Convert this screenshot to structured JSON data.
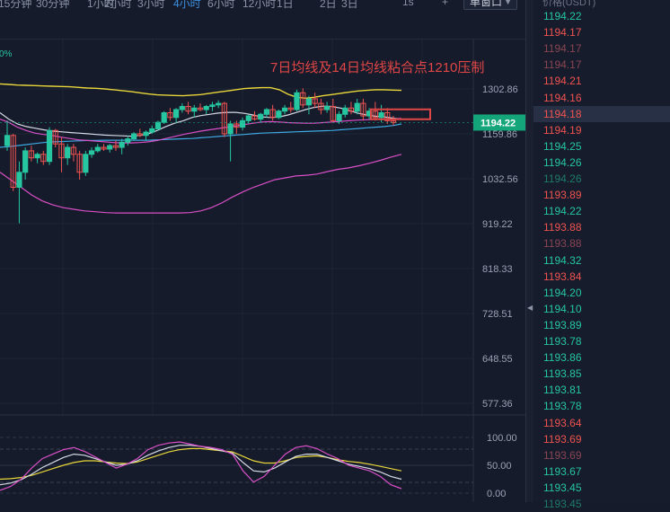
{
  "toolbar": {
    "timeframes": [
      "15分钟",
      "30分钟",
      "1小时",
      "2小时",
      "3小时",
      "4小时",
      "6小时",
      "12小时",
      "1日",
      "2日",
      "3日"
    ],
    "active_timeframe": "4小时",
    "extra_buttons": [
      "1s",
      "+"
    ],
    "chart_mode": "单窗口"
  },
  "colors": {
    "up": "#26c6a0",
    "down": "#ef5350",
    "background": "#151b2b",
    "ma_yellow": "#e8d63a",
    "ma_white": "#d8dbe6",
    "ma_magenta": "#d94fc6",
    "ma_blue": "#3fa8e0",
    "annotation": "#e04646",
    "price_tag": "#14a57a"
  },
  "price_panel": {
    "header": "价格(USDT)",
    "prices": [
      {
        "v": "1194.22",
        "c": "up"
      },
      {
        "v": "1194.17",
        "c": "down"
      },
      {
        "v": "1194.17",
        "c": "down-dim"
      },
      {
        "v": "1194.17",
        "c": "down-dim"
      },
      {
        "v": "1194.21",
        "c": "down"
      },
      {
        "v": "1194.16",
        "c": "down"
      },
      {
        "v": "1194.18",
        "c": "down",
        "highlight": true
      },
      {
        "v": "1194.19",
        "c": "down"
      },
      {
        "v": "1194.25",
        "c": "up"
      },
      {
        "v": "1194.26",
        "c": "up"
      },
      {
        "v": "1194.26",
        "c": "up-dim"
      },
      {
        "v": "1193.89",
        "c": "down"
      },
      {
        "v": "1194.22",
        "c": "up"
      },
      {
        "v": "1193.88",
        "c": "down"
      },
      {
        "v": "1193.88",
        "c": "down-dim"
      },
      {
        "v": "1194.32",
        "c": "up"
      },
      {
        "v": "1193.84",
        "c": "down"
      },
      {
        "v": "1194.20",
        "c": "up"
      },
      {
        "v": "1194.10",
        "c": "up"
      },
      {
        "v": "1193.89",
        "c": "up"
      },
      {
        "v": "1193.78",
        "c": "up"
      },
      {
        "v": "1193.86",
        "c": "up"
      },
      {
        "v": "1193.85",
        "c": "up"
      },
      {
        "v": "1193.81",
        "c": "up"
      },
      {
        "v": "1193.78",
        "c": "up"
      },
      {
        "v": "1193.64",
        "c": "down"
      },
      {
        "v": "1193.69",
        "c": "down"
      },
      {
        "v": "1193.69",
        "c": "down-dim"
      },
      {
        "v": "1193.67",
        "c": "up"
      },
      {
        "v": "1193.45",
        "c": "up"
      },
      {
        "v": "1193.45",
        "c": "up-dim"
      }
    ]
  },
  "chart_data": {
    "type": "candlestick",
    "main": {
      "y_ticks": [
        "1302.86",
        "1159.86",
        "1032.56",
        "919.22",
        "818.33",
        "728.51",
        "648.55",
        "577.36"
      ],
      "last_price": "1194.22",
      "left_label": "0%",
      "annotation_text": "7日均线及14日均线粘合点1210压制",
      "candles": [
        [
          1125,
          1200,
          1110,
          1155
        ],
        [
          1155,
          1160,
          1000,
          1010
        ],
        [
          1010,
          1080,
          920,
          1050
        ],
        [
          1050,
          1120,
          1030,
          1110
        ],
        [
          1110,
          1125,
          1080,
          1090
        ],
        [
          1090,
          1105,
          1075,
          1100
        ],
        [
          1100,
          1110,
          1070,
          1080
        ],
        [
          1080,
          1180,
          1070,
          1170
        ],
        [
          1170,
          1175,
          1120,
          1130
        ],
        [
          1130,
          1150,
          1050,
          1090
        ],
        [
          1090,
          1130,
          1070,
          1120
        ],
        [
          1120,
          1130,
          1080,
          1100
        ],
        [
          1100,
          1110,
          1030,
          1050
        ],
        [
          1050,
          1110,
          1040,
          1100
        ],
        [
          1100,
          1120,
          1090,
          1110
        ],
        [
          1110,
          1130,
          1105,
          1120
        ],
        [
          1120,
          1130,
          1110,
          1115
        ],
        [
          1115,
          1130,
          1105,
          1125
        ],
        [
          1125,
          1140,
          1110,
          1120
        ],
        [
          1120,
          1145,
          1100,
          1135
        ],
        [
          1135,
          1155,
          1125,
          1145
        ],
        [
          1145,
          1165,
          1140,
          1160
        ],
        [
          1160,
          1175,
          1150,
          1155
        ],
        [
          1155,
          1170,
          1140,
          1165
        ],
        [
          1165,
          1185,
          1160,
          1175
        ],
        [
          1175,
          1200,
          1170,
          1195
        ],
        [
          1195,
          1230,
          1190,
          1225
        ],
        [
          1225,
          1240,
          1200,
          1210
        ],
        [
          1210,
          1240,
          1195,
          1235
        ],
        [
          1235,
          1255,
          1225,
          1245
        ],
        [
          1245,
          1260,
          1220,
          1230
        ],
        [
          1230,
          1250,
          1210,
          1240
        ],
        [
          1240,
          1255,
          1230,
          1235
        ],
        [
          1235,
          1250,
          1220,
          1245
        ],
        [
          1245,
          1260,
          1230,
          1250
        ],
        [
          1250,
          1265,
          1240,
          1255
        ],
        [
          1255,
          1260,
          1150,
          1160
        ],
        [
          1160,
          1200,
          1080,
          1190
        ],
        [
          1190,
          1200,
          1160,
          1180
        ],
        [
          1180,
          1210,
          1170,
          1200
        ],
        [
          1200,
          1220,
          1190,
          1215
        ],
        [
          1215,
          1230,
          1200,
          1205
        ],
        [
          1205,
          1225,
          1195,
          1220
        ],
        [
          1220,
          1240,
          1210,
          1235
        ],
        [
          1235,
          1250,
          1200,
          1210
        ],
        [
          1210,
          1235,
          1205,
          1230
        ],
        [
          1230,
          1250,
          1220,
          1240
        ],
        [
          1240,
          1260,
          1225,
          1235
        ],
        [
          1235,
          1300,
          1230,
          1290
        ],
        [
          1290,
          1305,
          1240,
          1250
        ],
        [
          1250,
          1280,
          1220,
          1270
        ],
        [
          1270,
          1290,
          1240,
          1255
        ],
        [
          1255,
          1270,
          1220,
          1235
        ],
        [
          1235,
          1260,
          1225,
          1245
        ],
        [
          1245,
          1270,
          1195,
          1200
        ],
        [
          1200,
          1230,
          1190,
          1220
        ],
        [
          1220,
          1250,
          1210,
          1240
        ],
        [
          1240,
          1260,
          1220,
          1230
        ],
        [
          1230,
          1270,
          1220,
          1255
        ],
        [
          1255,
          1270,
          1200,
          1215
        ],
        [
          1215,
          1240,
          1205,
          1230
        ],
        [
          1230,
          1260,
          1200,
          1210
        ],
        [
          1210,
          1250,
          1195,
          1225
        ],
        [
          1225,
          1240,
          1190,
          1200
        ],
        [
          1200,
          1215,
          1185,
          1194.22
        ]
      ],
      "ma_yellow": [
        1320,
        1318,
        1316,
        1315,
        1314,
        1313,
        1312,
        1311,
        1310,
        1308,
        1306,
        1305,
        1303,
        1300,
        1297,
        1294,
        1290,
        1286,
        1283,
        1282,
        1281,
        1280,
        1282,
        1284,
        1288,
        1292,
        1296,
        1300,
        1304,
        1306,
        1307,
        1307,
        1300,
        1285,
        1275,
        1272,
        1275,
        1280,
        1284,
        1288,
        1292,
        1296,
        1298,
        1300,
        1300,
        1299,
        1298
      ],
      "ma_white": [
        1225,
        1205,
        1190,
        1182,
        1177,
        1172,
        1168,
        1166,
        1164,
        1162,
        1160,
        1158,
        1156,
        1155,
        1154,
        1153,
        1155,
        1160,
        1170,
        1182,
        1192,
        1200,
        1210,
        1216,
        1220,
        1224,
        1226,
        1226,
        1223,
        1218,
        1212,
        1210,
        1212,
        1218,
        1226,
        1235,
        1242,
        1246,
        1245,
        1240,
        1232,
        1224,
        1218,
        1214,
        1212,
        1208,
        1204
      ],
      "ma_magenta": [
        1205,
        1195,
        1180,
        1170,
        1162,
        1158,
        1155,
        1150,
        1146,
        1142,
        1140,
        1138,
        1136,
        1134,
        1133,
        1133,
        1134,
        1136,
        1140,
        1146,
        1152,
        1158,
        1163,
        1168,
        1172,
        1176,
        1180,
        1184,
        1188,
        1192,
        1196,
        1197,
        1196,
        1194,
        1193,
        1192,
        1192,
        1194,
        1196,
        1198,
        1200,
        1202,
        1203,
        1204,
        1205,
        1206,
        1207
      ],
      "ma_blue": [
        1120,
        1122,
        1125,
        1128,
        1131,
        1134,
        1136,
        1137,
        1138,
        1139,
        1140,
        1140,
        1141,
        1141,
        1141,
        1141,
        1141,
        1141,
        1142,
        1143,
        1144,
        1145,
        1146,
        1148,
        1150,
        1152,
        1154,
        1156,
        1158,
        1160,
        1162,
        1163,
        1164,
        1165,
        1166,
        1167,
        1168,
        1169,
        1170,
        1172,
        1174,
        1176,
        1178,
        1180,
        1182,
        1185,
        1190
      ],
      "ma_band_lower": [
        1050,
        1030,
        1010,
        990,
        975,
        965,
        958,
        954,
        950,
        948,
        946,
        945,
        945,
        945,
        945,
        945,
        945,
        945,
        946,
        950,
        958,
        970,
        985,
        998,
        1010,
        1020,
        1030,
        1035,
        1040,
        1042,
        1045,
        1052,
        1058,
        1062,
        1068,
        1075,
        1083,
        1092,
        1100
      ]
    },
    "oscillator": {
      "y_ticks": [
        "100.00",
        "50.00",
        "0.00"
      ],
      "line_magenta": [
        5,
        12,
        25,
        45,
        62,
        70,
        78,
        82,
        75,
        65,
        55,
        45,
        52,
        62,
        78,
        86,
        90,
        92,
        88,
        84,
        82,
        78,
        70,
        40,
        20,
        30,
        50,
        70,
        82,
        85,
        80,
        70,
        62,
        50,
        45,
        40,
        30,
        15,
        8
      ],
      "line_white": [
        15,
        18,
        24,
        34,
        46,
        55,
        64,
        70,
        68,
        62,
        56,
        50,
        52,
        58,
        68,
        76,
        82,
        86,
        86,
        84,
        80,
        76,
        72,
        55,
        40,
        38,
        45,
        56,
        66,
        70,
        70,
        64,
        58,
        52,
        48,
        44,
        38,
        30,
        25
      ],
      "line_yellow": [
        25,
        26,
        28,
        32,
        38,
        44,
        50,
        55,
        58,
        58,
        56,
        54,
        53,
        56,
        62,
        68,
        74,
        78,
        80,
        80,
        78,
        76,
        74,
        66,
        58,
        54,
        54,
        58,
        64,
        66,
        67,
        64,
        60,
        57,
        55,
        52,
        48,
        44,
        40
      ]
    }
  }
}
